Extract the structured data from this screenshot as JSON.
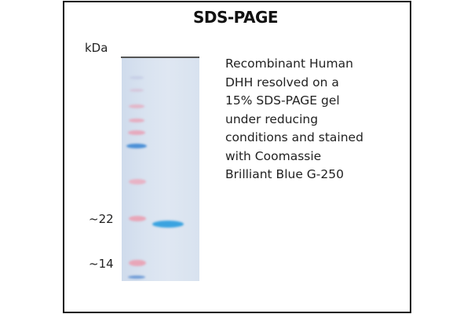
{
  "title": "SDS-PAGE",
  "unit_label": "kDa",
  "markers": [
    {
      "label": "~22"
    },
    {
      "label": "~14"
    }
  ],
  "caption": "Recombinant Human\nDHH resolved  on a\n15% SDS-PAGE gel\nunder reducing\nconditions and stained\nwith Coomassie\nBrilliant Blue G-250",
  "colors": {
    "marker_pink": "#e8a6b8",
    "marker_blue": "#4a8fd6",
    "sample_band": "#3aa3e0",
    "gel": "#dbe4f0"
  }
}
